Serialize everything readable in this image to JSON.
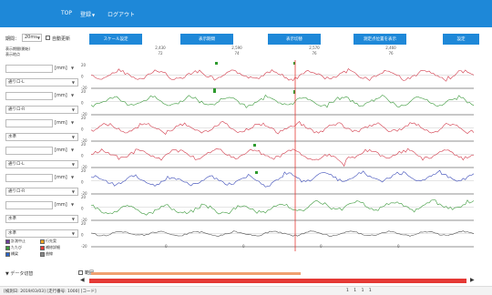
{
  "nav": {
    "top": "TOP",
    "menu": "登録",
    "logout": "ログアウト"
  },
  "controls": {
    "period_label": "期間：",
    "period_value": "20ms",
    "auto_update_label": "自動更新",
    "buttons": [
      "スケール設定",
      "表示期間",
      "表示切替",
      "測定点位置を表示",
      "設定"
    ]
  },
  "time_header": {
    "row1_label": "表示期間(開始)",
    "row2_label": "表示地点",
    "ticks": [
      {
        "top": "2,430",
        "bottom": "72"
      },
      {
        "top": "2,590",
        "bottom": "74"
      },
      {
        "top": "2,570",
        "bottom": "76"
      },
      {
        "top": "2,460",
        "bottom": "76"
      }
    ]
  },
  "left_panel": {
    "unit": "[mm]",
    "rows": [
      {
        "input": "",
        "select": "通りロ-L"
      },
      {
        "input": "",
        "select": "通りロ-R"
      },
      {
        "input": "",
        "select": "水準"
      },
      {
        "input": "",
        "select": "通りロ-L"
      },
      {
        "input": "",
        "select": "通りロ-R"
      },
      {
        "input": "",
        "select": "水準"
      },
      {
        "input": "",
        "select": "水準"
      }
    ]
  },
  "chart_data": {
    "type": "line",
    "channels": [
      {
        "color": "#d23a4a",
        "ticks": [
          "20",
          "0",
          "-20"
        ]
      },
      {
        "color": "#3c9a3c",
        "ticks": [
          "20",
          "0",
          "-20"
        ]
      },
      {
        "color": "#d23a4a",
        "ticks": [
          "20",
          "0",
          "-20"
        ]
      },
      {
        "color": "#d23a4a",
        "ticks": [
          "20",
          "0",
          "-20"
        ]
      },
      {
        "color": "#3a4ab8",
        "ticks": [
          "20",
          "0",
          "-20"
        ]
      },
      {
        "color": "#3c9a3c",
        "ticks": [
          "20",
          "0",
          "-20"
        ]
      },
      {
        "color": "#555555",
        "ticks": [
          "20",
          "0",
          "-20"
        ]
      }
    ],
    "bottom_ticks": [
      "0",
      "0",
      "0",
      "0"
    ],
    "cursor_color": "#e53935"
  },
  "legend": [
    {
      "label": "計測中止",
      "color": "#6a3d9a"
    },
    {
      "label": "行先案",
      "color": "#f5a623"
    },
    {
      "label": "たたび",
      "color": "#3c9a3c"
    },
    {
      "label": "補修詳細",
      "color": "#e53935"
    },
    {
      "label": "橋梁",
      "color": "#2a63c9"
    },
    {
      "label": "曲線",
      "color": "#888888"
    }
  ],
  "data_switch": "▼ データ切替",
  "range": {
    "label": "範囲",
    "left_arrow": "◀",
    "right_arrow": "▶"
  },
  "status": {
    "text": "[検測日: 2019/03/03] [走行番号: 1000] [コード]",
    "extra": "1    1    1    1"
  }
}
